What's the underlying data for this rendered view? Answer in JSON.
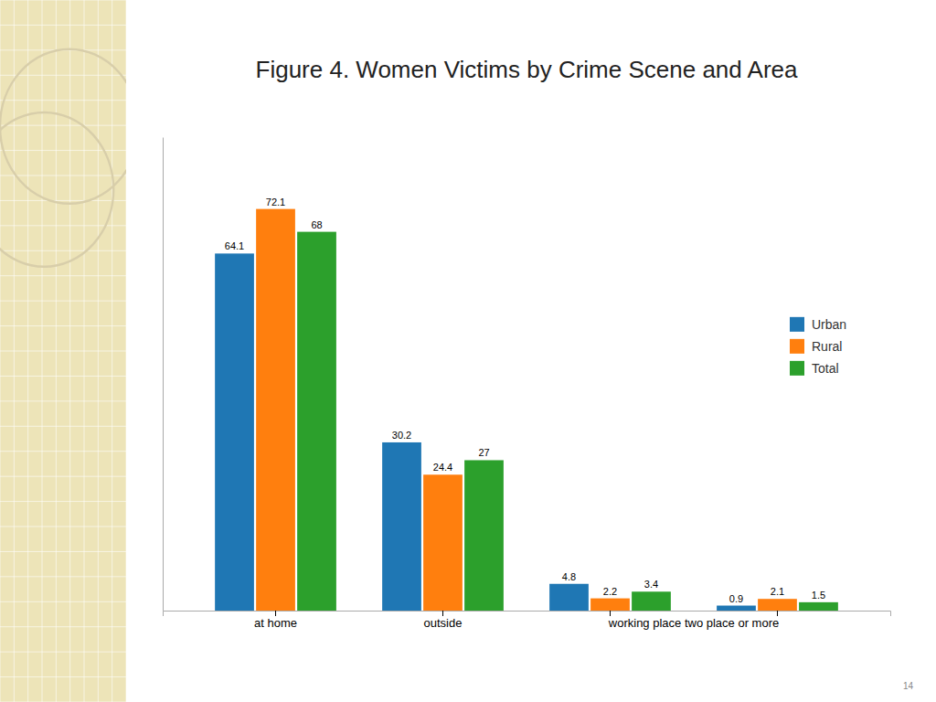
{
  "chart_data": {
    "type": "bar",
    "title": "Figure 4. Women Victims by Crime Scene and Area",
    "categories": [
      "at home",
      "outside",
      "working place two place or more",
      null
    ],
    "series": [
      {
        "name": "Urban",
        "values": [
          64.1,
          30.2,
          4.8,
          0.9
        ]
      },
      {
        "name": "Rural",
        "values": [
          72.1,
          24.4,
          2.2,
          2.1
        ]
      },
      {
        "name": "Total",
        "values": [
          68.0,
          27.0,
          3.4,
          1.5
        ]
      }
    ],
    "ylim": [
      0,
      85
    ],
    "grid": false,
    "legend": "right",
    "data_labels": true,
    "tick_labels": "x",
    "annotations": [
      "14"
    ]
  }
}
